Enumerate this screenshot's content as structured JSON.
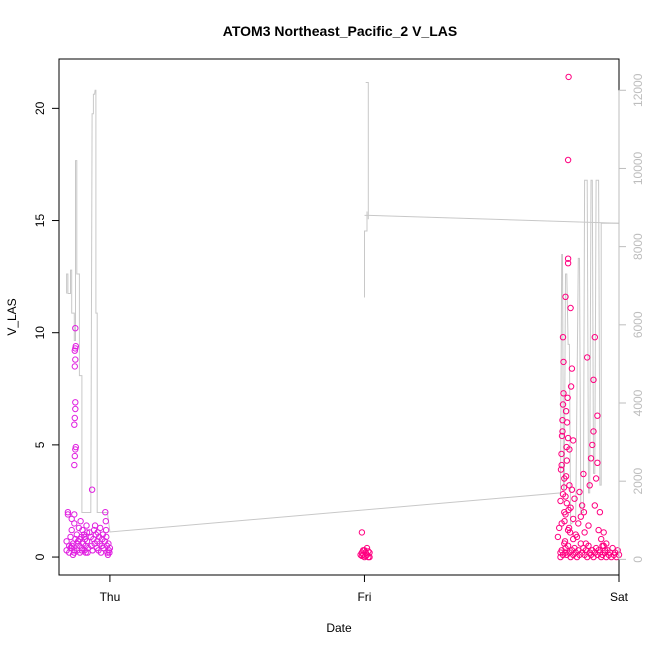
{
  "chart_data": {
    "type": "scatter",
    "title": "ATOM3 Northeast_Pacific_2 V_LAS",
    "xlabel": "Date",
    "ylabel": "V_LAS",
    "x_ticks": [
      {
        "label": "Thu",
        "value": 0
      },
      {
        "label": "Fri",
        "value": 1
      },
      {
        "label": "Sat",
        "value": 2
      }
    ],
    "xlim": [
      -0.2,
      2.0
    ],
    "ylim": [
      -0.8,
      22.2
    ],
    "y_ticks": [
      0,
      5,
      10,
      15,
      20
    ],
    "y2lim": [
      -400,
      12800
    ],
    "y2_ticks": [
      0,
      2000,
      4000,
      6000,
      8000,
      10000,
      12000
    ],
    "grid": false,
    "legend": "none",
    "colors": {
      "early_points": "#e020e0",
      "late_points": "#ff0080",
      "secondary_line": "#c8c8c8",
      "secondary_axis": "#bdbdbd"
    },
    "series": [
      {
        "type": "scatter",
        "axis": "left",
        "points": [
          [
            -0.17,
            0.3
          ],
          [
            -0.17,
            0.7
          ],
          [
            -0.165,
            1.9
          ],
          [
            -0.165,
            2.0
          ],
          [
            -0.16,
            0.5
          ],
          [
            -0.155,
            0.9
          ],
          [
            -0.15,
            0.4
          ],
          [
            -0.15,
            1.2
          ],
          [
            -0.145,
            0.6
          ],
          [
            -0.14,
            1.9
          ],
          [
            -0.14,
            0.2
          ],
          [
            -0.135,
            0.8
          ],
          [
            -0.15,
            1.7
          ],
          [
            -0.14,
            0.3
          ],
          [
            -0.15,
            0.5
          ],
          [
            -0.145,
            0.1
          ],
          [
            -0.16,
            0.2
          ],
          [
            -0.155,
            0.4
          ],
          [
            -0.14,
            1.5
          ],
          [
            -0.14,
            4.1
          ],
          [
            -0.138,
            4.5
          ],
          [
            -0.136,
            4.8
          ],
          [
            -0.134,
            4.9
          ],
          [
            -0.14,
            5.9
          ],
          [
            -0.138,
            6.2
          ],
          [
            -0.136,
            6.6
          ],
          [
            -0.136,
            6.9
          ],
          [
            -0.138,
            8.5
          ],
          [
            -0.136,
            8.8
          ],
          [
            -0.138,
            9.2
          ],
          [
            -0.136,
            9.3
          ],
          [
            -0.134,
            9.4
          ],
          [
            -0.136,
            10.2
          ],
          [
            -0.13,
            1.0
          ],
          [
            -0.128,
            0.3
          ],
          [
            -0.125,
            0.7
          ],
          [
            -0.122,
            1.3
          ],
          [
            -0.12,
            0.5
          ],
          [
            -0.118,
            0.2
          ],
          [
            -0.115,
            1.6
          ],
          [
            -0.112,
            0.9
          ],
          [
            -0.11,
            0.4
          ],
          [
            -0.108,
            1.2
          ],
          [
            -0.105,
            0.6
          ],
          [
            -0.102,
            1.0
          ],
          [
            -0.1,
            0.3
          ],
          [
            -0.098,
            0.8
          ],
          [
            -0.095,
            0.5
          ],
          [
            -0.092,
            1.4
          ],
          [
            -0.09,
            0.7
          ],
          [
            -0.088,
            0.2
          ],
          [
            -0.13,
            0.6
          ],
          [
            -0.12,
            0.8
          ],
          [
            -0.11,
            0.3
          ],
          [
            -0.1,
            0.9
          ],
          [
            -0.095,
            0.2
          ],
          [
            -0.09,
            1.1
          ],
          [
            -0.085,
            0.4
          ],
          [
            -0.08,
            1.1
          ],
          [
            -0.075,
            0.9
          ],
          [
            -0.072,
            0.5
          ],
          [
            -0.07,
            3.0
          ],
          [
            -0.068,
            0.3
          ],
          [
            -0.065,
            0.8
          ],
          [
            -0.062,
            1.2
          ],
          [
            -0.06,
            0.6
          ],
          [
            -0.058,
            1.4
          ],
          [
            -0.055,
            1.0
          ],
          [
            -0.052,
            0.4
          ],
          [
            -0.05,
            0.7
          ],
          [
            -0.048,
            1.1
          ],
          [
            -0.045,
            0.3
          ],
          [
            -0.042,
            0.9
          ],
          [
            -0.04,
            0.6
          ],
          [
            -0.038,
            1.3
          ],
          [
            -0.035,
            0.2
          ],
          [
            -0.032,
            0.5
          ],
          [
            -0.03,
            0.8
          ],
          [
            -0.028,
            1.0
          ],
          [
            -0.025,
            0.4
          ],
          [
            -0.02,
            0.7
          ],
          [
            -0.018,
            2.0
          ],
          [
            -0.016,
            1.6
          ],
          [
            -0.015,
            1.2
          ],
          [
            -0.014,
            0.9
          ],
          [
            -0.012,
            0.5
          ],
          [
            -0.01,
            0.2
          ],
          [
            -0.008,
            0.1
          ],
          [
            -0.006,
            0.6
          ],
          [
            -0.004,
            0.3
          ],
          [
            -0.002,
            0.2
          ],
          [
            0.0,
            0.4
          ],
          [
            0.99,
            1.1
          ],
          [
            0.99,
            0.2
          ],
          [
            0.995,
            0.1
          ],
          [
            1.0,
            0.3
          ],
          [
            1.0,
            0.0
          ],
          [
            1.005,
            0.2
          ],
          [
            1.01,
            0.1
          ],
          [
            1.01,
            0.4
          ],
          [
            1.015,
            0.0
          ],
          [
            1.02,
            0.2
          ],
          [
            0.985,
            0.1
          ],
          [
            0.99,
            0.05
          ],
          [
            0.995,
            0.3
          ],
          [
            1.005,
            0.05
          ],
          [
            1.015,
            0.25
          ],
          [
            1.02,
            0.0
          ],
          [
            1.77,
            0.2
          ],
          [
            1.775,
            4.1
          ],
          [
            1.778,
            5.6
          ],
          [
            1.78,
            9.8
          ],
          [
            1.782,
            8.7
          ],
          [
            1.785,
            2.0
          ],
          [
            1.79,
            0.4
          ],
          [
            1.79,
            11.6
          ],
          [
            1.792,
            6.5
          ],
          [
            1.795,
            4.3
          ],
          [
            1.8,
            13.3
          ],
          [
            1.8,
            13.1
          ],
          [
            1.8,
            17.7
          ],
          [
            1.802,
            21.4
          ],
          [
            1.805,
            3.2
          ],
          [
            1.808,
            1.1
          ],
          [
            1.81,
            11.1
          ],
          [
            1.812,
            7.6
          ],
          [
            1.815,
            8.4
          ],
          [
            1.82,
            5.2
          ],
          [
            1.82,
            0.8
          ],
          [
            1.77,
            0.0
          ],
          [
            1.775,
            0.3
          ],
          [
            1.78,
            0.1
          ],
          [
            1.785,
            0.6
          ],
          [
            1.79,
            0.2
          ],
          [
            1.795,
            0.1
          ],
          [
            1.8,
            0.5
          ],
          [
            1.805,
            0.2
          ],
          [
            1.81,
            0.0
          ],
          [
            1.815,
            0.3
          ],
          [
            1.82,
            0.1
          ],
          [
            1.825,
            0.4
          ],
          [
            1.83,
            0.2
          ],
          [
            1.835,
            0.0
          ],
          [
            1.84,
            0.3
          ],
          [
            1.845,
            0.1
          ],
          [
            1.85,
            0.6
          ],
          [
            1.855,
            0.2
          ],
          [
            1.86,
            0.4
          ],
          [
            1.865,
            0.1
          ],
          [
            1.87,
            0.3
          ],
          [
            1.875,
            0.0
          ],
          [
            1.88,
            0.5
          ],
          [
            1.885,
            0.2
          ],
          [
            1.89,
            0.1
          ],
          [
            1.895,
            0.3
          ],
          [
            1.9,
            0.0
          ],
          [
            1.905,
            0.2
          ],
          [
            1.91,
            0.4
          ],
          [
            1.915,
            0.1
          ],
          [
            1.92,
            0.3
          ],
          [
            1.925,
            0.2
          ],
          [
            1.93,
            0.0
          ],
          [
            1.935,
            0.1
          ],
          [
            1.94,
            0.5
          ],
          [
            1.945,
            0.2
          ],
          [
            1.95,
            0.0
          ],
          [
            1.955,
            0.3
          ],
          [
            1.96,
            0.1
          ],
          [
            1.965,
            0.2
          ],
          [
            1.97,
            0.0
          ],
          [
            1.975,
            0.4
          ],
          [
            1.98,
            0.1
          ],
          [
            1.985,
            0.2
          ],
          [
            1.99,
            0.0
          ],
          [
            1.995,
            0.3
          ],
          [
            2.0,
            0.1
          ],
          [
            1.775,
            1.5
          ],
          [
            1.78,
            2.8
          ],
          [
            1.785,
            3.5
          ],
          [
            1.79,
            1.9
          ],
          [
            1.795,
            2.4
          ],
          [
            1.8,
            1.2
          ],
          [
            1.805,
            4.8
          ],
          [
            1.81,
            2.2
          ],
          [
            1.815,
            3.0
          ],
          [
            1.82,
            1.7
          ],
          [
            1.825,
            2.6
          ],
          [
            1.83,
            1.0
          ],
          [
            1.835,
            0.9
          ],
          [
            1.84,
            1.5
          ],
          [
            1.845,
            2.9
          ],
          [
            1.85,
            1.8
          ],
          [
            1.855,
            2.3
          ],
          [
            1.86,
            3.7
          ],
          [
            1.862,
            2.0
          ],
          [
            1.865,
            1.1
          ],
          [
            1.87,
            0.6
          ],
          [
            1.875,
            8.9
          ],
          [
            1.88,
            1.4
          ],
          [
            1.885,
            3.2
          ],
          [
            1.89,
            4.4
          ],
          [
            1.895,
            5.0
          ],
          [
            1.9,
            5.6
          ],
          [
            1.9,
            7.9
          ],
          [
            1.905,
            9.8
          ],
          [
            1.905,
            2.3
          ],
          [
            1.91,
            3.5
          ],
          [
            1.915,
            4.2
          ],
          [
            1.915,
            6.3
          ],
          [
            1.92,
            1.2
          ],
          [
            1.925,
            2.0
          ],
          [
            1.93,
            0.8
          ],
          [
            1.935,
            0.5
          ],
          [
            1.94,
            1.1
          ],
          [
            1.945,
            0.3
          ],
          [
            1.95,
            0.6
          ],
          [
            1.76,
            0.9
          ],
          [
            1.765,
            1.3
          ],
          [
            1.77,
            2.5
          ],
          [
            1.772,
            3.9
          ],
          [
            1.774,
            4.6
          ],
          [
            1.776,
            5.4
          ],
          [
            1.778,
            6.1
          ],
          [
            1.78,
            6.8
          ],
          [
            1.782,
            7.3
          ],
          [
            1.784,
            3.1
          ],
          [
            1.786,
            1.6
          ],
          [
            1.788,
            0.7
          ],
          [
            1.79,
            2.7
          ],
          [
            1.792,
            3.6
          ],
          [
            1.794,
            4.9
          ],
          [
            1.796,
            6.0
          ],
          [
            1.798,
            7.1
          ],
          [
            1.8,
            5.3
          ],
          [
            1.802,
            2.1
          ],
          [
            1.804,
            1.3
          ]
        ]
      },
      {
        "type": "line",
        "axis": "right",
        "points": [
          [
            -0.17,
            6800
          ],
          [
            -0.17,
            7300
          ],
          [
            -0.165,
            7300
          ],
          [
            -0.165,
            6800
          ],
          [
            -0.155,
            6800
          ],
          [
            -0.155,
            7400
          ],
          [
            -0.15,
            7400
          ],
          [
            -0.15,
            6300
          ],
          [
            -0.14,
            6300
          ],
          [
            -0.14,
            5600
          ],
          [
            -0.135,
            5600
          ],
          [
            -0.135,
            10200
          ],
          [
            -0.13,
            10200
          ],
          [
            -0.13,
            7300
          ],
          [
            -0.12,
            7300
          ],
          [
            -0.12,
            4700
          ],
          [
            -0.11,
            4700
          ],
          [
            -0.11,
            1200
          ],
          [
            -0.075,
            1200
          ],
          [
            -0.07,
            11400
          ],
          [
            -0.065,
            11400
          ],
          [
            -0.065,
            11900
          ],
          [
            -0.06,
            11900
          ],
          [
            -0.058,
            12000
          ],
          [
            -0.055,
            12000
          ],
          [
            -0.055,
            6300
          ],
          [
            -0.05,
            6300
          ],
          [
            -0.05,
            1200
          ],
          [
            -0.01,
            1200
          ],
          [
            0.0,
            700
          ],
          [
            1.77,
            1700
          ],
          [
            1.775,
            7800
          ],
          [
            1.778,
            7800
          ],
          [
            1.782,
            1800
          ],
          [
            1.785,
            1800
          ],
          [
            1.79,
            7300
          ],
          [
            1.795,
            7300
          ],
          [
            1.8,
            5500
          ],
          [
            1.805,
            5500
          ],
          [
            1.81,
            900
          ],
          [
            1.83,
            1000
          ],
          [
            1.84,
            7700
          ],
          [
            1.845,
            7700
          ],
          [
            1.85,
            1200
          ],
          [
            1.86,
            1200
          ],
          [
            1.865,
            9700
          ],
          [
            1.87,
            9700
          ],
          [
            1.875,
            9700
          ],
          [
            1.88,
            1700
          ],
          [
            1.885,
            1700
          ],
          [
            1.89,
            9700
          ],
          [
            1.895,
            9700
          ],
          [
            1.9,
            2200
          ],
          [
            1.905,
            2200
          ],
          [
            1.91,
            9700
          ],
          [
            1.92,
            9700
          ],
          [
            1.925,
            1900
          ],
          [
            1.93,
            1900
          ],
          [
            1.93,
            8600
          ],
          [
            2.0,
            8600
          ]
        ],
        "segments": [
          [
            [
              1.0,
              6700
            ],
            [
              1.0,
              8400
            ],
            [
              1.01,
              8400
            ],
            [
              1.01,
              8900
            ]
          ],
          [
            [
              1.005,
              12200
            ],
            [
              1.015,
              12200
            ],
            [
              1.015,
              8700
            ]
          ],
          [
            [
              1.0,
              8800
            ],
            [
              1.02,
              8800
            ],
            [
              2.0,
              8600
            ]
          ]
        ]
      }
    ]
  }
}
